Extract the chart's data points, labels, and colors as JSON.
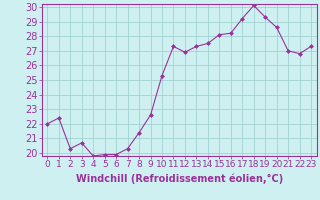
{
  "hours": [
    0,
    1,
    2,
    3,
    4,
    5,
    6,
    7,
    8,
    9,
    10,
    11,
    12,
    13,
    14,
    15,
    16,
    17,
    18,
    19,
    20,
    21,
    22,
    23
  ],
  "values": [
    22.0,
    22.4,
    20.3,
    20.7,
    19.8,
    19.9,
    19.9,
    20.3,
    21.4,
    22.6,
    25.3,
    27.3,
    26.9,
    27.3,
    27.5,
    28.1,
    28.2,
    29.2,
    30.1,
    29.3,
    28.6,
    27.0,
    26.8,
    27.3
  ],
  "line_color": "#993399",
  "marker": "D",
  "marker_size": 2.5,
  "background_color": "#cff0f0",
  "grid_color": "#99cccc",
  "xlabel": "Windchill (Refroidissement éolien,°C)",
  "ylabel": "",
  "title": "",
  "ylim": [
    20,
    30
  ],
  "yticks": [
    20,
    21,
    22,
    23,
    24,
    25,
    26,
    27,
    28,
    29,
    30
  ],
  "xlim": [
    -0.5,
    23.5
  ],
  "xlabel_color": "#993399",
  "tick_color": "#993399",
  "tick_label_color": "#993399",
  "spine_color": "#993399",
  "xlabel_fontsize": 7.0,
  "tick_fontsize": 6.5
}
